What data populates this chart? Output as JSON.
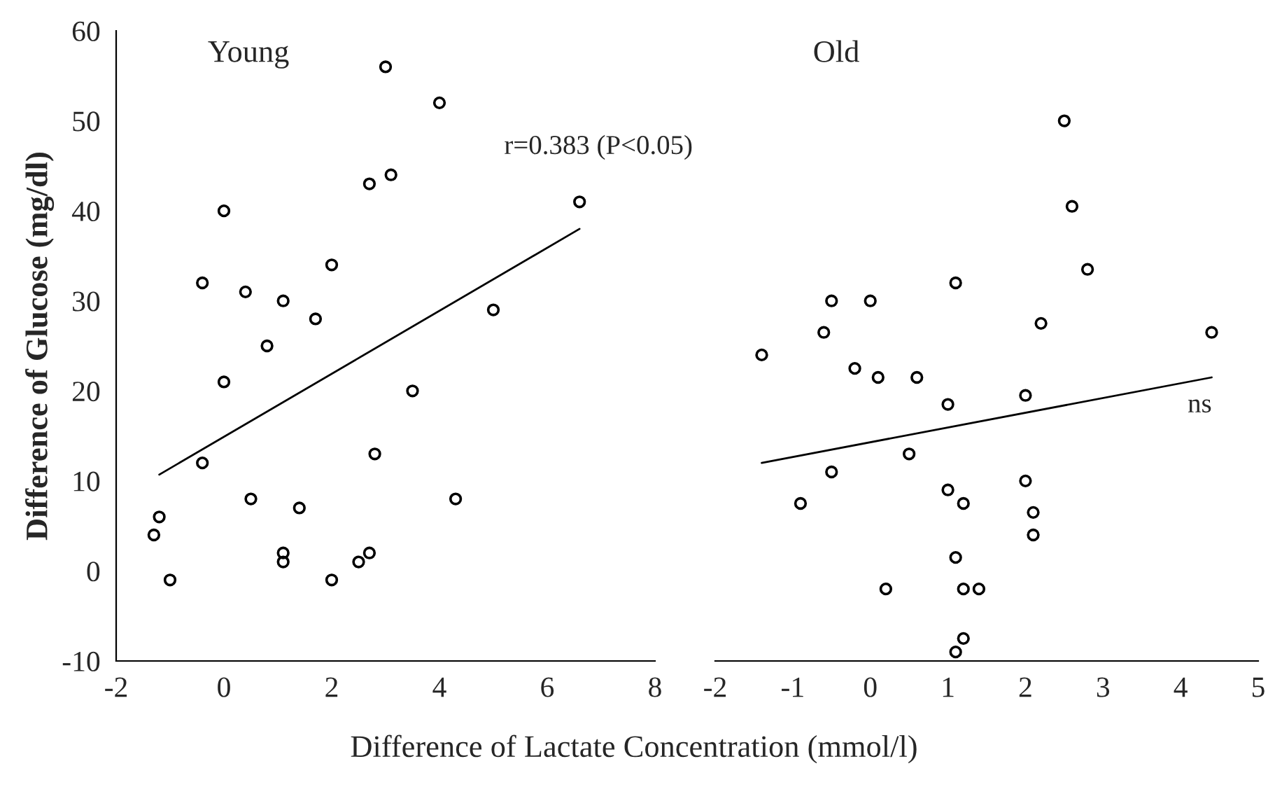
{
  "chart_data": [
    {
      "type": "scatter",
      "title": "Young",
      "xlabel": "Difference of Lactate Concentration (mmol/l)",
      "ylabel": "Difference of Glucose (mg/dl)",
      "xlim": [
        -2,
        8
      ],
      "xticks": [
        -2,
        0,
        2,
        4,
        6,
        8
      ],
      "ylim": [
        -10,
        60
      ],
      "yticks": [
        -10,
        0,
        10,
        20,
        30,
        40,
        50,
        60
      ],
      "grid": false,
      "legend": false,
      "annotations": [
        "r=0.383 (P<0.05)"
      ],
      "series": [
        {
          "color": "#000000",
          "marker": "circle",
          "x": [
            -1.3,
            -1.2,
            -1.0,
            -0.4,
            -0.4,
            0,
            0,
            0.4,
            0.5,
            0.8,
            1.1,
            1.1,
            1.1,
            1.4,
            1.7,
            2,
            2,
            2.5,
            2.7,
            2.7,
            2.8,
            3,
            3.1,
            3.5,
            4,
            4.3,
            5,
            6.6
          ],
          "values": [
            4,
            6,
            -1,
            12,
            32,
            40,
            21,
            31,
            8,
            25,
            30,
            2,
            1,
            7,
            28,
            34,
            -1,
            1,
            2,
            43,
            13,
            56,
            44,
            20,
            52,
            8,
            29,
            41
          ]
        },
        {
          "type": "line",
          "color": "#000000",
          "marker": "none",
          "line_style": "solid",
          "x": [
            -1.2,
            6.6
          ],
          "values": [
            10.7,
            38
          ]
        }
      ]
    },
    {
      "type": "scatter",
      "title": "Old",
      "xlim": [
        -2,
        5
      ],
      "xticks": [
        -2,
        -1,
        0,
        1,
        2,
        3,
        4,
        5
      ],
      "ylim": [
        -10,
        60
      ],
      "tick_labels": "x",
      "grid": false,
      "legend": false,
      "annotations": [
        "ns"
      ],
      "series": [
        {
          "color": "#000000",
          "marker": "circle",
          "x": [
            -1.4,
            -0.6,
            -0.5,
            -0.9,
            -0.5,
            -0.2,
            0.1,
            0,
            0.6,
            1.1,
            1,
            0.5,
            1.0,
            1.2,
            2,
            2,
            2.1,
            2.1,
            1.1,
            0.2,
            1.2,
            1.4,
            1.2,
            1.1,
            2.2,
            2.5,
            2.6,
            2.8,
            4.4
          ],
          "values": [
            24,
            26.5,
            30,
            7.5,
            11,
            22.5,
            21.5,
            30,
            21.5,
            32,
            18.5,
            13,
            9,
            7.5,
            19.5,
            10,
            6.5,
            4,
            1.5,
            -2,
            -2,
            -2,
            -7.5,
            -9,
            27.5,
            50,
            40.5,
            33.5,
            26.5
          ]
        },
        {
          "type": "line",
          "color": "#000000",
          "marker": "none",
          "line_style": "solid",
          "x": [
            -1.4,
            4.4
          ],
          "values": [
            12,
            21.5
          ]
        }
      ]
    }
  ]
}
